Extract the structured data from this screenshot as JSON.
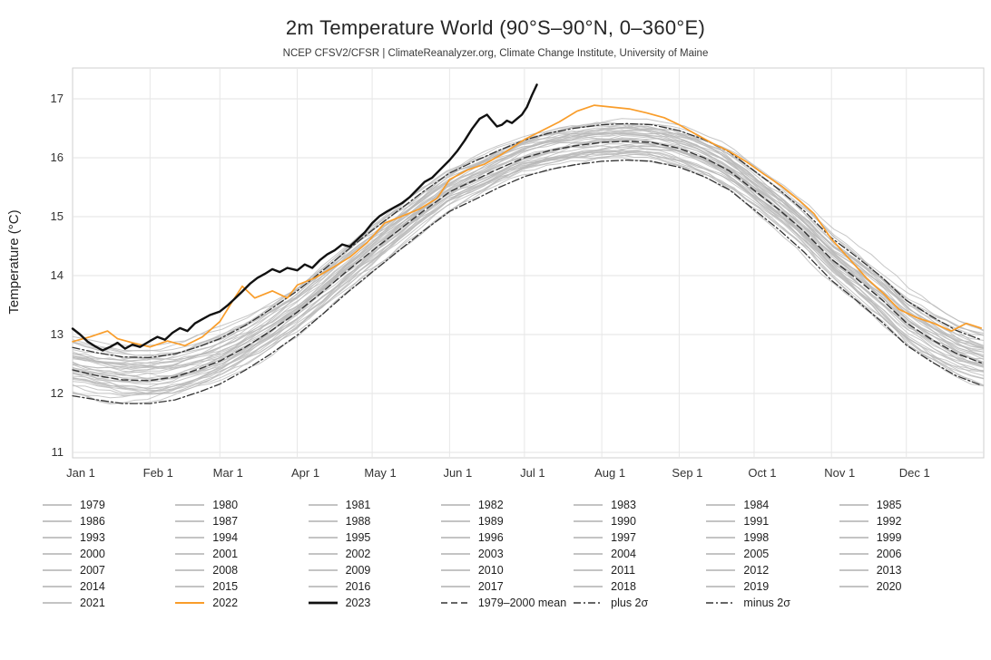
{
  "header": {
    "title": "2m Temperature World (90°S–90°N, 0–360°E)",
    "subtitle": "NCEP CFSV2/CFSR | ClimateReanalyzer.org, Climate Change Institute, University of Maine"
  },
  "chart_data": {
    "type": "line",
    "title": "2m Temperature World (90°S–90°N, 0–360°E)",
    "xlabel": "",
    "ylabel": "Temperature (°C)",
    "ylim": [
      11,
      17.6
    ],
    "x_range_days": [
      0,
      365
    ],
    "x_unit": "day_of_year",
    "grid": true,
    "legend_position": "bottom",
    "y_ticks": [
      11,
      12,
      13,
      14,
      15,
      16,
      17
    ],
    "x_tick_days": [
      0,
      31,
      59,
      90,
      120,
      151,
      181,
      212,
      243,
      273,
      304,
      334
    ],
    "x_tick_labels": [
      "Jan 1",
      "Feb 1",
      "Mar 1",
      "Apr 1",
      "May 1",
      "Jun 1",
      "Jul 1",
      "Aug 1",
      "Sep 1",
      "Oct 1",
      "Nov 1",
      "Dec 1"
    ],
    "background_years": {
      "start": 1979,
      "end": 2021,
      "color": "#b9b9b9",
      "note": "43 thin gray traces (one per year 1979-2021) forming a band around the seasonal cycle; drawn as approximations scaled between the ±2σ envelopes"
    },
    "series": [
      {
        "key": "mean",
        "name": "1979–2000 mean",
        "color": "#333333",
        "width": 1.4,
        "dash": "7 4",
        "days": [
          0,
          10,
          20,
          31,
          41,
          51,
          59,
          69,
          79,
          90,
          100,
          110,
          120,
          130,
          140,
          151,
          161,
          171,
          181,
          191,
          201,
          212,
          222,
          232,
          243,
          253,
          263,
          273,
          283,
          293,
          304,
          314,
          324,
          334,
          344,
          354,
          364
        ],
        "values": [
          12.4,
          12.3,
          12.23,
          12.22,
          12.28,
          12.42,
          12.55,
          12.78,
          13.05,
          13.38,
          13.72,
          14.08,
          14.42,
          14.75,
          15.08,
          15.42,
          15.62,
          15.82,
          16.0,
          16.12,
          16.2,
          16.26,
          16.28,
          16.26,
          16.16,
          16.0,
          15.78,
          15.45,
          15.12,
          14.75,
          14.28,
          13.95,
          13.6,
          13.2,
          12.92,
          12.68,
          12.52
        ]
      },
      {
        "key": "plus2s",
        "name": "plus 2σ",
        "color": "#333333",
        "width": 1.3,
        "dash": "8 3 2 3",
        "days": [
          0,
          10,
          20,
          31,
          41,
          51,
          59,
          69,
          79,
          90,
          100,
          110,
          120,
          130,
          140,
          151,
          161,
          171,
          181,
          191,
          201,
          212,
          222,
          232,
          243,
          253,
          263,
          273,
          283,
          293,
          304,
          314,
          324,
          334,
          344,
          354,
          364
        ],
        "values": [
          12.78,
          12.69,
          12.62,
          12.61,
          12.67,
          12.8,
          12.93,
          13.15,
          13.42,
          13.74,
          14.08,
          14.43,
          14.77,
          15.09,
          15.41,
          15.74,
          15.94,
          16.13,
          16.3,
          16.42,
          16.5,
          16.56,
          16.58,
          16.56,
          16.46,
          16.31,
          16.1,
          15.78,
          15.46,
          15.1,
          14.64,
          14.32,
          13.98,
          13.58,
          13.31,
          13.07,
          12.91
        ]
      },
      {
        "key": "minus2s",
        "name": "minus 2σ",
        "color": "#333333",
        "width": 1.3,
        "dash": "8 3 2 3",
        "days": [
          0,
          10,
          20,
          31,
          41,
          51,
          59,
          69,
          79,
          90,
          100,
          110,
          120,
          130,
          140,
          151,
          161,
          171,
          181,
          191,
          201,
          212,
          222,
          232,
          243,
          253,
          263,
          273,
          283,
          293,
          304,
          314,
          324,
          334,
          344,
          354,
          364
        ],
        "values": [
          11.96,
          11.89,
          11.83,
          11.83,
          11.89,
          12.03,
          12.16,
          12.39,
          12.66,
          12.99,
          13.34,
          13.71,
          14.06,
          14.4,
          14.74,
          15.09,
          15.29,
          15.5,
          15.68,
          15.8,
          15.88,
          15.94,
          15.96,
          15.94,
          15.84,
          15.68,
          15.46,
          15.12,
          14.78,
          14.4,
          13.92,
          13.58,
          13.22,
          12.82,
          12.54,
          12.3,
          12.14
        ]
      },
      {
        "key": "y2022",
        "name": "2022",
        "color": "#f99d2a",
        "width": 1.7,
        "dash": "",
        "days": [
          0,
          7,
          14,
          18,
          24,
          31,
          38,
          45,
          52,
          59,
          64,
          68,
          73,
          80,
          86,
          90,
          97,
          104,
          111,
          118,
          125,
          132,
          139,
          146,
          151,
          158,
          165,
          172,
          181,
          188,
          195,
          202,
          209,
          216,
          223,
          230,
          237,
          243,
          250,
          257,
          263,
          270,
          277,
          284,
          291,
          297,
          304,
          311,
          318,
          325,
          331,
          338,
          345,
          352,
          358,
          364
        ],
        "values": [
          12.88,
          12.96,
          13.06,
          12.93,
          12.86,
          12.79,
          12.89,
          12.81,
          12.96,
          13.22,
          13.56,
          13.82,
          13.62,
          13.74,
          13.62,
          13.84,
          13.96,
          14.13,
          14.31,
          14.56,
          14.89,
          15.01,
          15.13,
          15.31,
          15.63,
          15.79,
          15.89,
          16.06,
          16.31,
          16.46,
          16.61,
          16.79,
          16.89,
          16.86,
          16.83,
          16.76,
          16.68,
          16.56,
          16.39,
          16.23,
          16.11,
          15.93,
          15.72,
          15.52,
          15.28,
          15.05,
          14.62,
          14.29,
          13.96,
          13.69,
          13.43,
          13.29,
          13.19,
          13.06,
          13.19,
          13.11
        ]
      },
      {
        "key": "y2023",
        "name": "2023",
        "color": "#111111",
        "width": 2.4,
        "dash": "",
        "days": [
          0,
          3,
          6,
          9,
          12,
          15,
          18,
          21,
          24,
          27,
          31,
          34,
          37,
          40,
          43,
          46,
          49,
          52,
          55,
          59,
          62,
          65,
          68,
          71,
          74,
          77,
          80,
          83,
          86,
          90,
          93,
          96,
          99,
          102,
          105,
          108,
          111,
          114,
          117,
          120,
          123,
          126,
          129,
          132,
          135,
          138,
          141,
          144,
          147,
          151,
          154,
          157,
          160,
          163,
          166,
          168,
          170,
          172,
          174,
          176,
          178,
          180,
          182,
          184,
          186
        ],
        "values": [
          13.1,
          13.0,
          12.88,
          12.8,
          12.73,
          12.79,
          12.86,
          12.76,
          12.83,
          12.79,
          12.89,
          12.96,
          12.91,
          13.03,
          13.11,
          13.06,
          13.19,
          13.26,
          13.33,
          13.39,
          13.49,
          13.61,
          13.73,
          13.86,
          13.96,
          14.03,
          14.11,
          14.06,
          14.13,
          14.09,
          14.19,
          14.13,
          14.26,
          14.36,
          14.43,
          14.53,
          14.49,
          14.61,
          14.73,
          14.89,
          15.01,
          15.09,
          15.16,
          15.23,
          15.33,
          15.46,
          15.59,
          15.66,
          15.79,
          15.96,
          16.11,
          16.29,
          16.49,
          16.66,
          16.73,
          16.63,
          16.53,
          16.56,
          16.63,
          16.59,
          16.66,
          16.73,
          16.86,
          17.06,
          17.24
        ]
      }
    ]
  },
  "legend": {
    "year_labels": [
      "1979",
      "1980",
      "1981",
      "1982",
      "1983",
      "1984",
      "1985",
      "1986",
      "1987",
      "1988",
      "1989",
      "1990",
      "1991",
      "1992",
      "1993",
      "1994",
      "1995",
      "1996",
      "1997",
      "1998",
      "1999",
      "2000",
      "2001",
      "2002",
      "2003",
      "2004",
      "2005",
      "2006",
      "2007",
      "2008",
      "2009",
      "2010",
      "2011",
      "2012",
      "2013",
      "2014",
      "2015",
      "2016",
      "2017",
      "2018",
      "2019",
      "2020",
      "2021"
    ],
    "special_items": [
      {
        "label": "2022",
        "type": "y2022"
      },
      {
        "label": "2023",
        "type": "y2023"
      },
      {
        "label": "1979–2000 mean",
        "type": "mean"
      },
      {
        "label": "plus 2σ",
        "type": "plus2s"
      },
      {
        "label": "minus 2σ",
        "type": "minus2s"
      }
    ],
    "styles": {
      "year": {
        "color": "#b0b0b0",
        "width": 1.6,
        "dash": ""
      },
      "y2022": {
        "color": "#f99d2a",
        "width": 2.0,
        "dash": ""
      },
      "y2023": {
        "color": "#111111",
        "width": 2.8,
        "dash": ""
      },
      "mean": {
        "color": "#333333",
        "width": 1.6,
        "dash": "7 4"
      },
      "plus2s": {
        "color": "#333333",
        "width": 1.6,
        "dash": "8 3 2 3"
      },
      "minus2s": {
        "color": "#333333",
        "width": 1.6,
        "dash": "8 3 2 3"
      }
    }
  }
}
